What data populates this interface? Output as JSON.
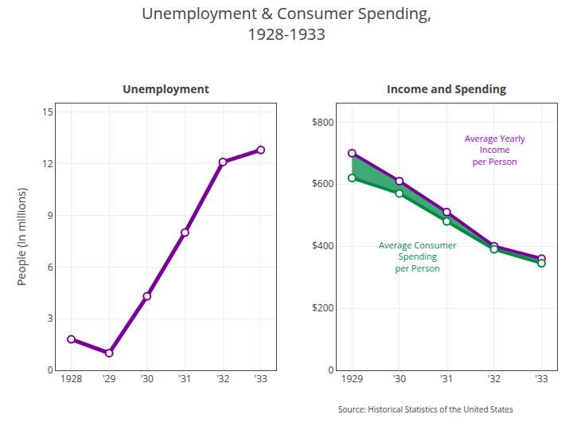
{
  "title": "Unemployment & Consumer Spending,",
  "subtitle": "1928-1933",
  "chart_data": [
    {
      "type": "line",
      "title": "Unemployment",
      "categories": [
        "1928",
        "'29",
        "'30",
        "'31",
        "'32",
        "'33"
      ],
      "values": [
        1.8,
        1.0,
        4.3,
        8.0,
        12.1,
        12.8
      ],
      "color": "#7B0099",
      "marker": "circle",
      "ylabel": "People (in millions)",
      "ylim": [
        0,
        15.5
      ],
      "yticks": [
        0,
        3,
        6,
        9,
        12,
        15
      ],
      "grid": true
    },
    {
      "type": "line",
      "title": "Income and Spending",
      "categories": [
        "1929",
        "'30",
        "'31",
        "'32",
        "'33"
      ],
      "series": [
        {
          "values": [
            700,
            610,
            510,
            400,
            360
          ],
          "color": "#7B0099",
          "marker": "circle"
        },
        {
          "values": [
            620,
            570,
            480,
            390,
            345
          ],
          "color": "#008B45",
          "marker": "circle"
        }
      ],
      "ylim": [
        0,
        860
      ],
      "yticks": [
        0,
        {
          "value": 200,
          "label": "$200"
        },
        {
          "value": 400,
          "label": "$400"
        },
        {
          "value": 600,
          "label": "$600"
        },
        {
          "value": 800,
          "label": "$800"
        }
      ],
      "grid": true,
      "annotations": [
        {
          "text": "Average Yearly\nIncome\nper Person",
          "color": "#9400D3"
        },
        {
          "text": "Average Consumer\nSpending\nper Person",
          "color": "#008B45"
        },
        {
          "text": "Source: Historical Statistics of the United States"
        }
      ]
    }
  ]
}
